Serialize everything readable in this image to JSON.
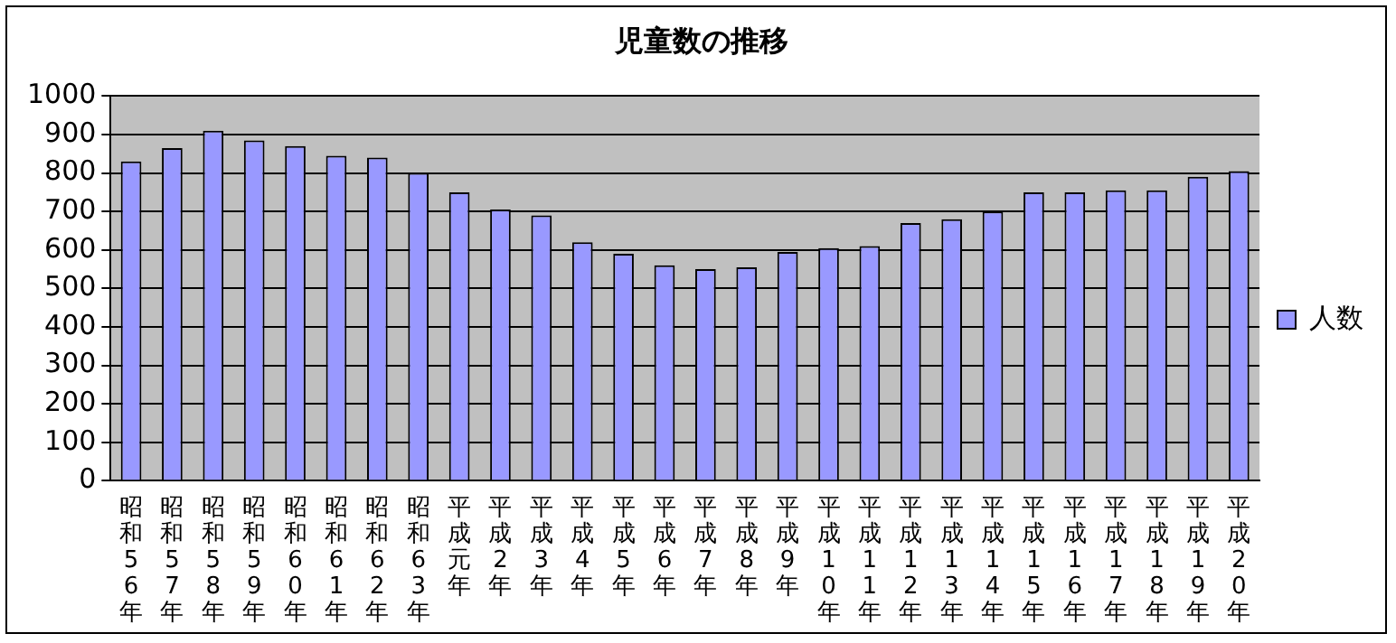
{
  "chart_data": {
    "type": "bar",
    "title": "児童数の推移",
    "categories": [
      "昭和56年",
      "昭和57年",
      "昭和58年",
      "昭和59年",
      "昭和60年",
      "昭和61年",
      "昭和62年",
      "昭和63年",
      "平成元年",
      "平成2年",
      "平成3年",
      "平成4年",
      "平成5年",
      "平成6年",
      "平成7年",
      "平成8年",
      "平成9年",
      "平成10年",
      "平成11年",
      "平成12年",
      "平成13年",
      "平成14年",
      "平成15年",
      "平成16年",
      "平成17年",
      "平成18年",
      "平成19年",
      "平成20年"
    ],
    "series": [
      {
        "name": "人数",
        "color": "#9999ff",
        "values": [
          830,
          865,
          910,
          885,
          870,
          845,
          840,
          800,
          750,
          705,
          690,
          620,
          590,
          560,
          550,
          555,
          595,
          605,
          610,
          670,
          680,
          700,
          750,
          750,
          755,
          755,
          790,
          805
        ]
      }
    ],
    "ylim": [
      0,
      1000
    ],
    "yticks": [
      0,
      100,
      200,
      300,
      400,
      500,
      600,
      700,
      800,
      900,
      1000
    ],
    "grid": "y",
    "legend": "right"
  }
}
